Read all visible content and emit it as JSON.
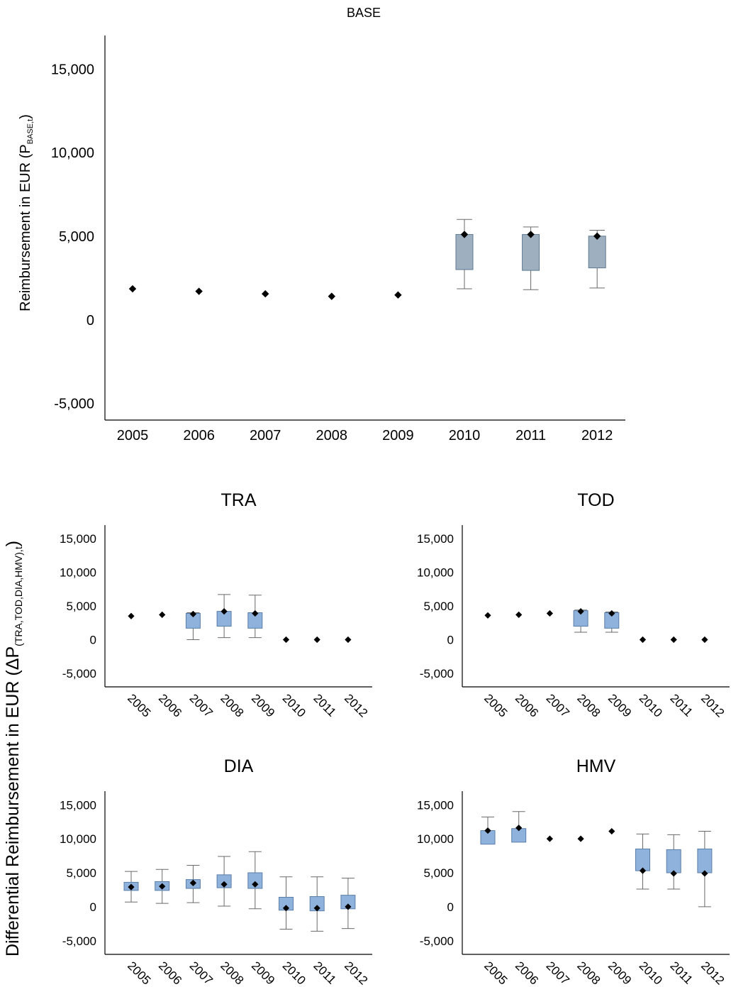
{
  "figure": {
    "base_ylabel_main": "Reimbursement in EUR (P",
    "base_ylabel_sub": "BASE,t",
    "base_ylabel_end": ")",
    "diff_ylabel_main": "Differential Reimbursement in EUR (ΔP",
    "diff_ylabel_sub": "(TRA,TOD,DIA,HMV),t",
    "diff_ylabel_end": ")"
  },
  "colors": {
    "base_box_fill": "#9eafbf",
    "base_box_stroke": "#5f7890",
    "diff_box_fill": "#8fb2dc",
    "diff_box_stroke": "#5a7ea8",
    "whisker": "#6a6a6a",
    "marker": "#000000",
    "axis": "#000000"
  },
  "chart_data": [
    {
      "id": "BASE",
      "type": "box",
      "title": "BASE",
      "categories": [
        "2005",
        "2006",
        "2007",
        "2008",
        "2009",
        "2010",
        "2011",
        "2012"
      ],
      "ylim": [
        -6000,
        17000
      ],
      "yticks": [
        -5000,
        0,
        5000,
        10000,
        15000
      ],
      "ytick_labels": [
        "-5,000",
        "0",
        "5,000",
        "10,000",
        "15,000"
      ],
      "grid": false,
      "series": [
        {
          "category": "2005",
          "mean": 1850
        },
        {
          "category": "2006",
          "mean": 1700
        },
        {
          "category": "2007",
          "mean": 1550
        },
        {
          "category": "2008",
          "mean": 1400
        },
        {
          "category": "2009",
          "mean": 1480
        },
        {
          "category": "2010",
          "min": 1850,
          "q1": 3000,
          "q3": 5100,
          "max": 6000,
          "mean": 5100
        },
        {
          "category": "2011",
          "min": 1800,
          "q1": 2950,
          "q3": 5100,
          "max": 5550,
          "mean": 5100
        },
        {
          "category": "2012",
          "min": 1900,
          "q1": 3100,
          "q3": 5000,
          "max": 5350,
          "mean": 5000
        }
      ]
    },
    {
      "id": "TRA",
      "type": "box",
      "title": "TRA",
      "categories": [
        "2005",
        "2006",
        "2007",
        "2008",
        "2009",
        "2010",
        "2011",
        "2012"
      ],
      "ylim": [
        -7000,
        17000
      ],
      "yticks": [
        -5000,
        0,
        5000,
        10000,
        15000
      ],
      "ytick_labels": [
        "-5,000",
        "0",
        "5,000",
        "10,000",
        "15,000"
      ],
      "grid": false,
      "series": [
        {
          "category": "2005",
          "mean": 3500
        },
        {
          "category": "2006",
          "mean": 3700
        },
        {
          "category": "2007",
          "min": 0,
          "q1": 1700,
          "q3": 3900,
          "max": 4000,
          "mean": 3800
        },
        {
          "category": "2008",
          "min": 300,
          "q1": 2000,
          "q3": 4200,
          "max": 6700,
          "mean": 4200
        },
        {
          "category": "2009",
          "min": 300,
          "q1": 1700,
          "q3": 4000,
          "max": 6600,
          "mean": 3900
        },
        {
          "category": "2010",
          "mean": 0
        },
        {
          "category": "2011",
          "mean": 0
        },
        {
          "category": "2012",
          "mean": 0
        }
      ]
    },
    {
      "id": "TOD",
      "type": "box",
      "title": "TOD",
      "categories": [
        "2005",
        "2006",
        "2007",
        "2008",
        "2009",
        "2010",
        "2011",
        "2012"
      ],
      "ylim": [
        -7000,
        17000
      ],
      "yticks": [
        -5000,
        0,
        5000,
        10000,
        15000
      ],
      "ytick_labels": [
        "-5,000",
        "0",
        "5,000",
        "10,000",
        "15,000"
      ],
      "grid": false,
      "series": [
        {
          "category": "2005",
          "mean": 3600
        },
        {
          "category": "2006",
          "mean": 3700
        },
        {
          "category": "2007",
          "mean": 3900
        },
        {
          "category": "2008",
          "min": 1100,
          "q1": 2000,
          "q3": 4300,
          "max": 4400,
          "mean": 4200
        },
        {
          "category": "2009",
          "min": 1100,
          "q1": 1700,
          "q3": 4000,
          "max": 4100,
          "mean": 3900
        },
        {
          "category": "2010",
          "mean": 0
        },
        {
          "category": "2011",
          "mean": 0
        },
        {
          "category": "2012",
          "mean": 0
        }
      ]
    },
    {
      "id": "DIA",
      "type": "box",
      "title": "DIA",
      "categories": [
        "2005",
        "2006",
        "2007",
        "2008",
        "2009",
        "2010",
        "2011",
        "2012"
      ],
      "ylim": [
        -7000,
        17000
      ],
      "yticks": [
        -5000,
        0,
        5000,
        10000,
        15000
      ],
      "ytick_labels": [
        "-5,000",
        "0",
        "5,000",
        "10,000",
        "15,000"
      ],
      "grid": false,
      "series": [
        {
          "category": "2005",
          "min": 700,
          "q1": 2400,
          "q3": 3600,
          "max": 5200,
          "mean": 2900
        },
        {
          "category": "2006",
          "min": 500,
          "q1": 2400,
          "q3": 3700,
          "max": 5500,
          "mean": 3000
        },
        {
          "category": "2007",
          "min": 600,
          "q1": 2700,
          "q3": 4000,
          "max": 6100,
          "mean": 3500
        },
        {
          "category": "2008",
          "min": 100,
          "q1": 2800,
          "q3": 4700,
          "max": 7400,
          "mean": 3300
        },
        {
          "category": "2009",
          "min": -300,
          "q1": 2700,
          "q3": 5000,
          "max": 8100,
          "mean": 3300
        },
        {
          "category": "2010",
          "min": -3300,
          "q1": -500,
          "q3": 1400,
          "max": 4400,
          "mean": -200
        },
        {
          "category": "2011",
          "min": -3600,
          "q1": -600,
          "q3": 1500,
          "max": 4400,
          "mean": -200
        },
        {
          "category": "2012",
          "min": -3200,
          "q1": -300,
          "q3": 1700,
          "max": 4200,
          "mean": 0
        }
      ]
    },
    {
      "id": "HMV",
      "type": "box",
      "title": "HMV",
      "categories": [
        "2005",
        "2006",
        "2007",
        "2008",
        "2009",
        "2010",
        "2011",
        "2012"
      ],
      "ylim": [
        -7000,
        17000
      ],
      "yticks": [
        -5000,
        0,
        5000,
        10000,
        15000
      ],
      "ytick_labels": [
        "-5,000",
        "0",
        "5,000",
        "10,000",
        "15,000"
      ],
      "grid": false,
      "series": [
        {
          "category": "2005",
          "min": 9200,
          "q1": 9200,
          "q3": 11200,
          "max": 13200,
          "mean": 11200
        },
        {
          "category": "2006",
          "min": 9500,
          "q1": 9500,
          "q3": 11500,
          "max": 14000,
          "mean": 11600
        },
        {
          "category": "2007",
          "mean": 10000
        },
        {
          "category": "2008",
          "mean": 10000
        },
        {
          "category": "2009",
          "mean": 11100
        },
        {
          "category": "2010",
          "min": 2600,
          "q1": 5300,
          "q3": 8500,
          "max": 10700,
          "mean": 5300
        },
        {
          "category": "2011",
          "min": 2600,
          "q1": 5000,
          "q3": 8400,
          "max": 10600,
          "mean": 4900
        },
        {
          "category": "2012",
          "min": 0,
          "q1": 5000,
          "q3": 8500,
          "max": 11100,
          "mean": 4900
        }
      ]
    }
  ]
}
